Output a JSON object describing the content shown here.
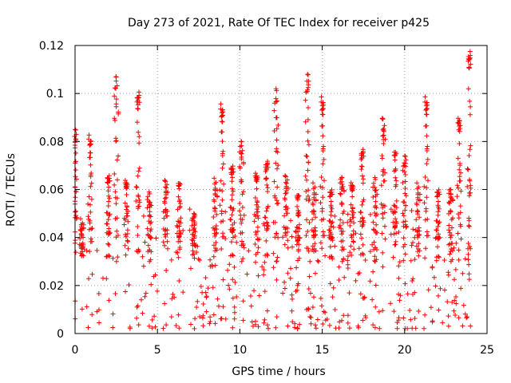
{
  "chart_data": {
    "type": "scatter",
    "title": "Day 273 of 2021, Rate Of TEC Index for receiver p425",
    "xlabel": "GPS time / hours",
    "ylabel": "ROTI / TECUs",
    "xlim": [
      0,
      25
    ],
    "ylim": [
      0,
      0.12
    ],
    "xticks": [
      0,
      5,
      10,
      15,
      20,
      25
    ],
    "xtick_labels": [
      "0",
      "5",
      "10",
      "15",
      "20",
      "25"
    ],
    "yticks": [
      0,
      0.02,
      0.04,
      0.06,
      0.08,
      0.1,
      0.12
    ],
    "ytick_labels": [
      "0",
      "0.02",
      "0.04",
      "0.06",
      "0.08",
      "0.1",
      "0.12"
    ],
    "grid": true,
    "marker": "+",
    "color": "#ff0000",
    "x_range_of_data": [
      0,
      24
    ],
    "bulk_band": [
      0.002,
      0.035
    ],
    "spike_events": [
      {
        "x": 0.0,
        "y": 0.085
      },
      {
        "x": 0.4,
        "y": 0.048
      },
      {
        "x": 0.9,
        "y": 0.083
      },
      {
        "x": 2.0,
        "y": 0.066
      },
      {
        "x": 2.5,
        "y": 0.11
      },
      {
        "x": 3.1,
        "y": 0.064
      },
      {
        "x": 3.8,
        "y": 0.101
      },
      {
        "x": 4.5,
        "y": 0.06
      },
      {
        "x": 5.5,
        "y": 0.064
      },
      {
        "x": 6.3,
        "y": 0.063
      },
      {
        "x": 7.2,
        "y": 0.05
      },
      {
        "x": 8.5,
        "y": 0.065
      },
      {
        "x": 8.9,
        "y": 0.096
      },
      {
        "x": 9.5,
        "y": 0.07
      },
      {
        "x": 10.1,
        "y": 0.083
      },
      {
        "x": 11.0,
        "y": 0.067
      },
      {
        "x": 11.6,
        "y": 0.072
      },
      {
        "x": 12.2,
        "y": 0.103
      },
      {
        "x": 12.8,
        "y": 0.066
      },
      {
        "x": 13.5,
        "y": 0.058
      },
      {
        "x": 14.1,
        "y": 0.108
      },
      {
        "x": 14.5,
        "y": 0.063
      },
      {
        "x": 15.0,
        "y": 0.099
      },
      {
        "x": 15.5,
        "y": 0.06
      },
      {
        "x": 16.2,
        "y": 0.068
      },
      {
        "x": 16.8,
        "y": 0.063
      },
      {
        "x": 17.4,
        "y": 0.077
      },
      {
        "x": 18.2,
        "y": 0.066
      },
      {
        "x": 18.7,
        "y": 0.09
      },
      {
        "x": 19.4,
        "y": 0.076
      },
      {
        "x": 20.0,
        "y": 0.074
      },
      {
        "x": 20.8,
        "y": 0.063
      },
      {
        "x": 21.3,
        "y": 0.099
      },
      {
        "x": 22.0,
        "y": 0.06
      },
      {
        "x": 22.8,
        "y": 0.063
      },
      {
        "x": 23.3,
        "y": 0.09
      },
      {
        "x": 23.9,
        "y": 0.118
      }
    ]
  }
}
